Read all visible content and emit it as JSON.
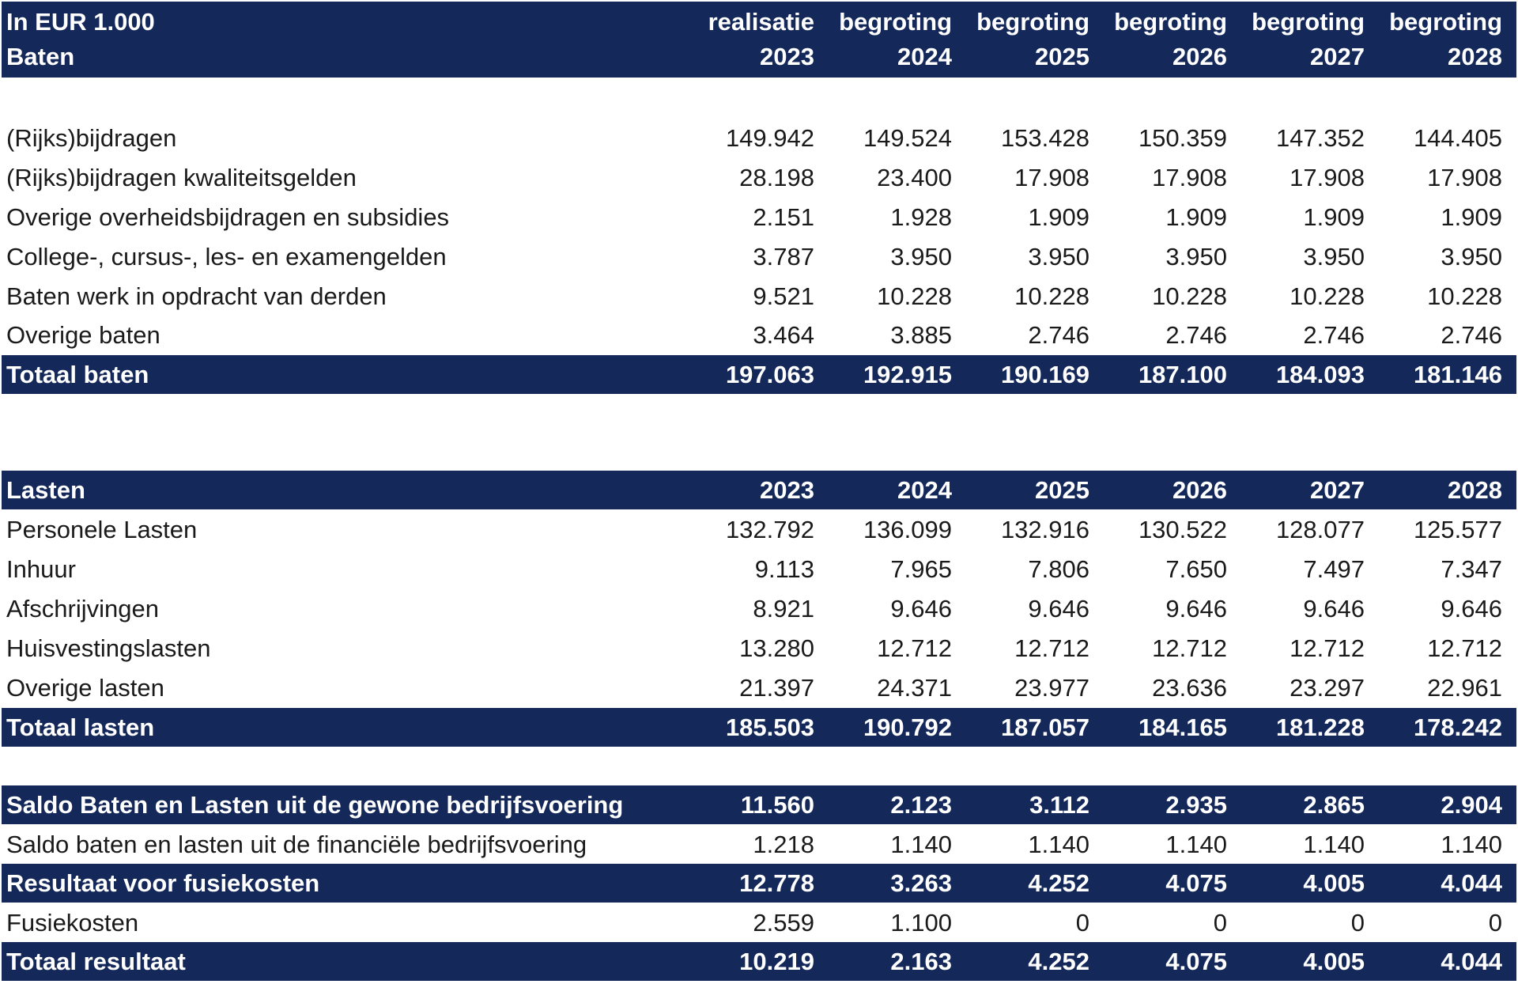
{
  "header": {
    "unit_label": "In EUR 1.000",
    "section_label": "Baten",
    "columns": [
      {
        "type": "realisatie",
        "year": "2023"
      },
      {
        "type": "begroting",
        "year": "2024"
      },
      {
        "type": "begroting",
        "year": "2025"
      },
      {
        "type": "begroting",
        "year": "2026"
      },
      {
        "type": "begroting",
        "year": "2027"
      },
      {
        "type": "begroting",
        "year": "2028"
      }
    ]
  },
  "baten": {
    "rows": [
      {
        "label": "(Rijks)bijdragen",
        "values": [
          "149.942",
          "149.524",
          "153.428",
          "150.359",
          "147.352",
          "144.405"
        ]
      },
      {
        "label": "(Rijks)bijdragen kwaliteitsgelden",
        "values": [
          "28.198",
          "23.400",
          "17.908",
          "17.908",
          "17.908",
          "17.908"
        ]
      },
      {
        "label": "Overige overheidsbijdragen en subsidies",
        "values": [
          "2.151",
          "1.928",
          "1.909",
          "1.909",
          "1.909",
          "1.909"
        ]
      },
      {
        "label": "College-, cursus-, les- en examengelden",
        "values": [
          "3.787",
          "3.950",
          "3.950",
          "3.950",
          "3.950",
          "3.950"
        ]
      },
      {
        "label": "Baten werk in opdracht van derden",
        "values": [
          "9.521",
          "10.228",
          "10.228",
          "10.228",
          "10.228",
          "10.228"
        ]
      },
      {
        "label": "Overige baten",
        "values": [
          "3.464",
          "3.885",
          "2.746",
          "2.746",
          "2.746",
          "2.746"
        ]
      }
    ],
    "total": {
      "label": "Totaal baten",
      "values": [
        "197.063",
        "192.915",
        "190.169",
        "187.100",
        "184.093",
        "181.146"
      ]
    }
  },
  "lasten": {
    "header": {
      "label": "Lasten",
      "years": [
        "2023",
        "2024",
        "2025",
        "2026",
        "2027",
        "2028"
      ]
    },
    "rows": [
      {
        "label": "Personele Lasten",
        "values": [
          "132.792",
          "136.099",
          "132.916",
          "130.522",
          "128.077",
          "125.577"
        ]
      },
      {
        "label": "Inhuur",
        "values": [
          "9.113",
          "7.965",
          "7.806",
          "7.650",
          "7.497",
          "7.347"
        ]
      },
      {
        "label": "Afschrijvingen",
        "values": [
          "8.921",
          "9.646",
          "9.646",
          "9.646",
          "9.646",
          "9.646"
        ]
      },
      {
        "label": "Huisvestingslasten",
        "values": [
          "13.280",
          "12.712",
          "12.712",
          "12.712",
          "12.712",
          "12.712"
        ]
      },
      {
        "label": "Overige lasten",
        "values": [
          "21.397",
          "24.371",
          "23.977",
          "23.636",
          "23.297",
          "22.961"
        ]
      }
    ],
    "total": {
      "label": "Totaal lasten",
      "values": [
        "185.503",
        "190.792",
        "187.057",
        "184.165",
        "181.228",
        "178.242"
      ]
    }
  },
  "resultaat": {
    "saldo_gewoon": {
      "label": "Saldo Baten en Lasten uit de gewone bedrijfsvoering",
      "values": [
        "11.560",
        "2.123",
        "3.112",
        "2.935",
        "2.865",
        "2.904"
      ]
    },
    "saldo_financieel": {
      "label": "Saldo baten en lasten uit de financiële bedrijfsvoering",
      "values": [
        "1.218",
        "1.140",
        "1.140",
        "1.140",
        "1.140",
        "1.140"
      ]
    },
    "voor_fusiekosten": {
      "label": "Resultaat voor fusiekosten",
      "values": [
        "12.778",
        "3.263",
        "4.252",
        "4.075",
        "4.005",
        "4.044"
      ]
    },
    "fusiekosten": {
      "label": "Fusiekosten",
      "values": [
        "2.559",
        "1.100",
        "0",
        "0",
        "0",
        "0"
      ]
    },
    "totaal": {
      "label": "Totaal resultaat",
      "values": [
        "10.219",
        "2.163",
        "4.252",
        "4.075",
        "4.005",
        "4.044"
      ]
    }
  },
  "colors": {
    "header_bg": "#14285a",
    "header_text": "#ffffff",
    "body_text": "#1a1a1a"
  }
}
